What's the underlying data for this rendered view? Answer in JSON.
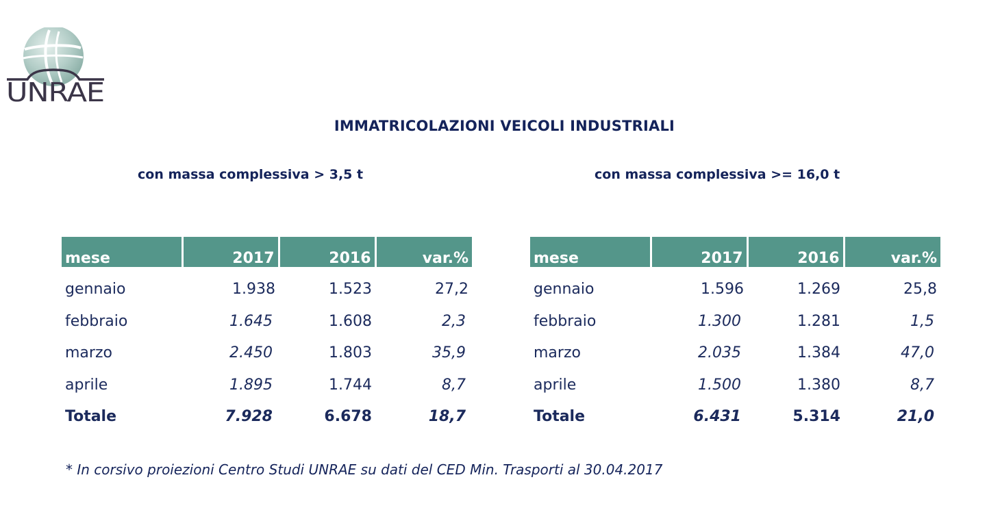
{
  "logo": {
    "text": "UNRAE",
    "icon": "unrae-globe-logo"
  },
  "title": "IMMATRICOLAZIONI VEICOLI INDUSTRIALI",
  "tables": [
    {
      "subtitle": "con massa complessiva > 3,5 t",
      "headers": [
        "mese",
        "2017",
        "2016",
        "var.%"
      ],
      "rows": [
        {
          "mese": "gennaio",
          "y2017": "1.938",
          "y2016": "1.523",
          "var": "27,2"
        },
        {
          "mese": "febbraio",
          "y2017": "1.645",
          "y2016": "1.608",
          "var": "2,3"
        },
        {
          "mese": "marzo",
          "y2017": "2.450",
          "y2016": "1.803",
          "var": "35,9"
        },
        {
          "mese": "aprile",
          "y2017": "1.895",
          "y2016": "1.744",
          "var": "8,7"
        }
      ],
      "total": {
        "mese": "Totale",
        "y2017": "7.928",
        "y2016": "6.678",
        "var": "18,7"
      }
    },
    {
      "subtitle": "con massa complessiva >= 16,0 t",
      "headers": [
        "mese",
        "2017",
        "2016",
        "var.%"
      ],
      "rows": [
        {
          "mese": "gennaio",
          "y2017": "1.596",
          "y2016": "1.269",
          "var": "25,8"
        },
        {
          "mese": "febbraio",
          "y2017": "1.300",
          "y2016": "1.281",
          "var": "1,5"
        },
        {
          "mese": "marzo",
          "y2017": "2.035",
          "y2016": "1.384",
          "var": "47,0"
        },
        {
          "mese": "aprile",
          "y2017": "1.500",
          "y2016": "1.380",
          "var": "8,7"
        }
      ],
      "total": {
        "mese": "Totale",
        "y2017": "6.431",
        "y2016": "5.314",
        "var": "21,0"
      }
    }
  ],
  "note": "* In corsivo proiezioni Centro Studi UNRAE su dati del CED Min. Trasporti al 30.04.2017",
  "colors": {
    "header_bg": "#54968a",
    "text": "#1b2a5c",
    "logo_globe": "#a9c5bf",
    "logo_text": "#3b3548"
  }
}
